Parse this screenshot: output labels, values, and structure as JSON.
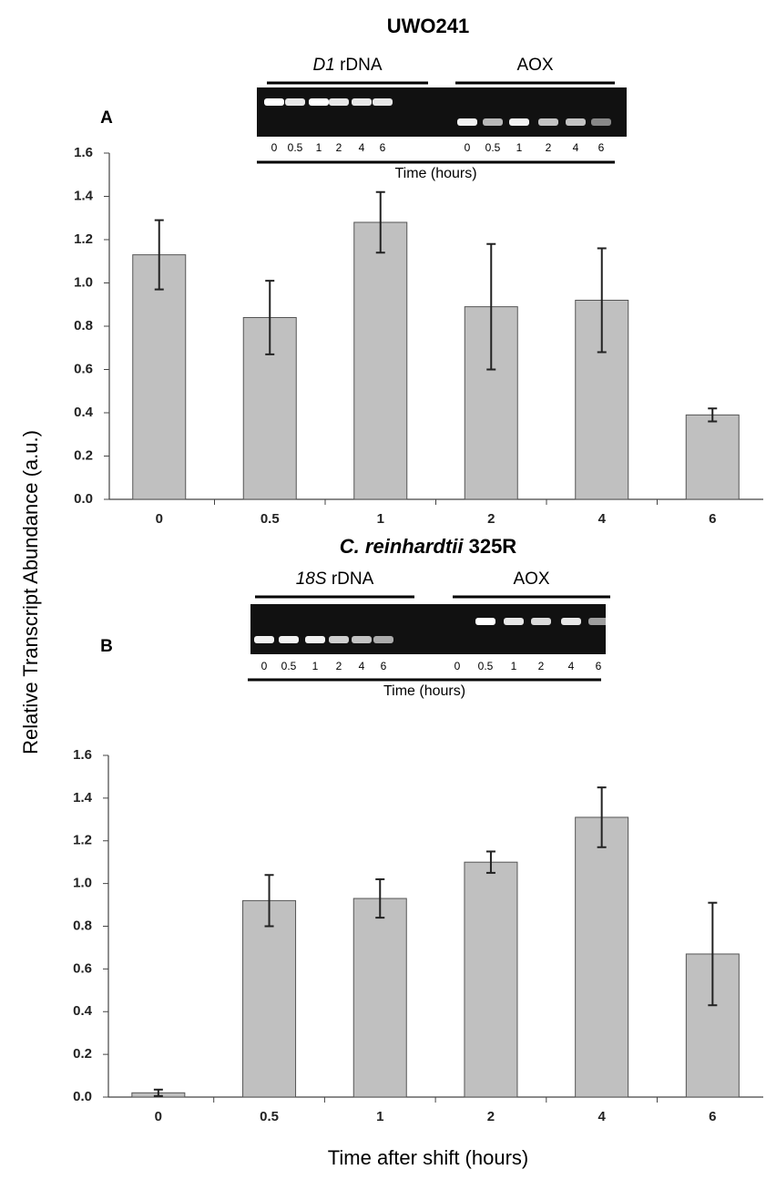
{
  "y_label": "Relative Transcript Abundance (a.u.)",
  "x_label": "Time after shift (hours)",
  "chart_data": [
    {
      "type": "bar",
      "panel": "A",
      "title": [
        "UWO241"
      ],
      "gel": {
        "left_label": [
          "D1",
          "rDNA"
        ],
        "right_label": [
          "",
          "AOX"
        ],
        "lanes_left": [
          "0",
          "0.5",
          "1",
          "2",
          "4",
          "6"
        ],
        "lanes_right": [
          "0",
          "0.5",
          "1",
          "2",
          "4",
          "6"
        ],
        "axis_label": "Time (hours)"
      },
      "categories": [
        "0",
        "0.5",
        "1",
        "2",
        "4",
        "6"
      ],
      "values": [
        1.13,
        0.84,
        1.28,
        0.89,
        0.92,
        0.39
      ],
      "errors": [
        0.16,
        0.17,
        0.14,
        0.29,
        0.24,
        0.03
      ],
      "color": "#c0c0c0",
      "ylim": [
        0,
        1.6
      ],
      "yticks": [
        {
          "value": 0,
          "label": "0.0"
        },
        {
          "value": 0.2,
          "label": "0.2"
        },
        {
          "value": 0.4,
          "label": "0.4"
        },
        {
          "value": 0.6,
          "label": "0.6"
        },
        {
          "value": 0.8,
          "label": "0.8"
        },
        {
          "value": 1,
          "label": "1.0"
        },
        {
          "value": 1.2,
          "label": "1.2"
        },
        {
          "value": 1.4,
          "label": "1.4"
        },
        {
          "value": 1.6,
          "label": "1.6"
        }
      ]
    },
    {
      "type": "bar",
      "panel": "B",
      "title": [
        "C. reinhardtii",
        "325R"
      ],
      "gel": {
        "left_label": [
          "18S",
          "rDNA"
        ],
        "right_label": [
          "",
          "AOX"
        ],
        "lanes_left": [
          "0",
          "0.5",
          "1",
          "2",
          "4",
          "6"
        ],
        "lanes_right": [
          "0",
          "0.5",
          "1",
          "2",
          "4",
          "6"
        ],
        "axis_label": "Time (hours)"
      },
      "categories": [
        "0",
        "0.5",
        "1",
        "2",
        "4",
        "6"
      ],
      "values": [
        0.02,
        0.92,
        0.93,
        1.1,
        1.31,
        0.67
      ],
      "errors": [
        0.015,
        0.12,
        0.09,
        0.05,
        0.14,
        0.24
      ],
      "color": "#c0c0c0",
      "ylim": [
        0,
        1.6
      ],
      "yticks": [
        {
          "value": 0,
          "label": "0.0"
        },
        {
          "value": 0.2,
          "label": "0.2"
        },
        {
          "value": 0.4,
          "label": "0.4"
        },
        {
          "value": 0.6,
          "label": "0.6"
        },
        {
          "value": 0.8,
          "label": "0.8"
        },
        {
          "value": 1,
          "label": "1.0"
        },
        {
          "value": 1.2,
          "label": "1.2"
        },
        {
          "value": 1.4,
          "label": "1.4"
        },
        {
          "value": 1.6,
          "label": "1.6"
        }
      ]
    }
  ]
}
